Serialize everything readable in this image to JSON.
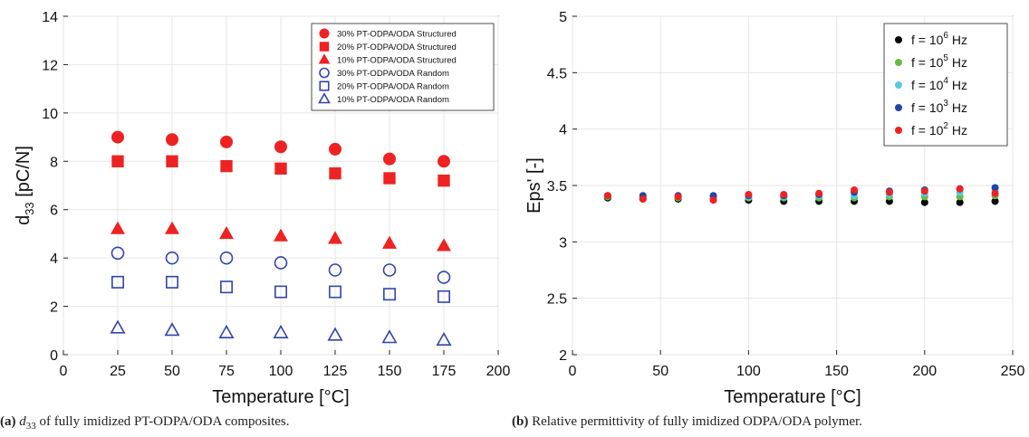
{
  "colors": {
    "red": "#ee2222",
    "blue": "#3344aa",
    "black": "#000000",
    "green": "#66bb44",
    "cyan": "#55ccdd",
    "navy": "#2244aa"
  },
  "chart_data": [
    {
      "type": "scatter",
      "xlabel": "Temperature [°C]",
      "ylabel_main": "d",
      "ylabel_sub": "33",
      "ylabel_rest": " [pC/N]",
      "xlim": [
        0,
        200
      ],
      "ylim": [
        0,
        14
      ],
      "xticks": [
        0,
        25,
        50,
        75,
        100,
        125,
        150,
        175,
        200
      ],
      "yticks": [
        0,
        2,
        4,
        6,
        8,
        10,
        12,
        14
      ],
      "grid": true,
      "legend_position": "top-right",
      "series": [
        {
          "name": "30% PT-ODPA/ODA Structured",
          "marker": "circle",
          "fill": true,
          "color": "red",
          "x": [
            25,
            50,
            75,
            100,
            125,
            150,
            175
          ],
          "y": [
            9.0,
            8.9,
            8.8,
            8.6,
            8.5,
            8.1,
            8.0
          ]
        },
        {
          "name": "20% PT-ODPA/ODA Structured",
          "marker": "square",
          "fill": true,
          "color": "red",
          "x": [
            25,
            50,
            75,
            100,
            125,
            150,
            175
          ],
          "y": [
            8.0,
            8.0,
            7.8,
            7.7,
            7.5,
            7.3,
            7.2
          ]
        },
        {
          "name": "10% PT-ODPA/ODA Structured",
          "marker": "triangle",
          "fill": true,
          "color": "red",
          "x": [
            25,
            50,
            75,
            100,
            125,
            150,
            175
          ],
          "y": [
            5.2,
            5.2,
            5.0,
            4.9,
            4.8,
            4.6,
            4.5
          ]
        },
        {
          "name": "30% PT-ODPA/ODA Random",
          "marker": "circle",
          "fill": false,
          "color": "blue",
          "x": [
            25,
            50,
            75,
            100,
            125,
            150,
            175
          ],
          "y": [
            4.2,
            4.0,
            4.0,
            3.8,
            3.5,
            3.5,
            3.2
          ]
        },
        {
          "name": "20% PT-ODPA/ODA Random",
          "marker": "square",
          "fill": false,
          "color": "blue",
          "x": [
            25,
            50,
            75,
            100,
            125,
            150,
            175
          ],
          "y": [
            3.0,
            3.0,
            2.8,
            2.6,
            2.6,
            2.5,
            2.4
          ]
        },
        {
          "name": "10% PT-ODPA/ODA Random",
          "marker": "triangle",
          "fill": false,
          "color": "blue",
          "x": [
            25,
            50,
            75,
            100,
            125,
            150,
            175
          ],
          "y": [
            1.1,
            1.0,
            0.9,
            0.9,
            0.8,
            0.7,
            0.6
          ]
        }
      ]
    },
    {
      "type": "scatter",
      "xlabel": "Temperature [°C]",
      "ylabel": "Eps' [-]",
      "xlim": [
        0,
        250
      ],
      "ylim": [
        2,
        5
      ],
      "xticks": [
        0,
        50,
        100,
        150,
        200,
        250
      ],
      "yticks": [
        2,
        2.5,
        3,
        3.5,
        4,
        4.5,
        5
      ],
      "grid": true,
      "legend_position": "top-right",
      "series": [
        {
          "name_prefix": "f = 10",
          "name_exp": "6",
          "name_suffix": " Hz",
          "color": "black",
          "x": [
            20,
            40,
            60,
            80,
            100,
            120,
            140,
            160,
            180,
            200,
            220,
            240
          ],
          "y": [
            3.39,
            3.38,
            3.38,
            3.38,
            3.37,
            3.36,
            3.36,
            3.36,
            3.36,
            3.35,
            3.35,
            3.36
          ]
        },
        {
          "name_prefix": "f = 10",
          "name_exp": "5",
          "name_suffix": " Hz",
          "color": "green",
          "x": [
            20,
            40,
            60,
            80,
            100,
            120,
            140,
            160,
            180,
            200,
            220,
            240
          ],
          "y": [
            3.4,
            3.39,
            3.39,
            3.39,
            3.39,
            3.39,
            3.39,
            3.39,
            3.4,
            3.4,
            3.4,
            3.41
          ]
        },
        {
          "name_prefix": "f = 10",
          "name_exp": "4",
          "name_suffix": " Hz",
          "color": "cyan",
          "x": [
            20,
            40,
            60,
            80,
            100,
            120,
            140,
            160,
            180,
            200,
            220,
            240
          ],
          "y": [
            3.41,
            3.4,
            3.4,
            3.4,
            3.4,
            3.4,
            3.41,
            3.41,
            3.42,
            3.43,
            3.44,
            3.45
          ]
        },
        {
          "name_prefix": "f = 10",
          "name_exp": "3",
          "name_suffix": " Hz",
          "color": "navy",
          "x": [
            20,
            40,
            60,
            80,
            100,
            120,
            140,
            160,
            180,
            200,
            220,
            240
          ],
          "y": [
            3.41,
            3.41,
            3.41,
            3.41,
            3.41,
            3.41,
            3.42,
            3.44,
            3.45,
            3.46,
            3.47,
            3.48
          ]
        },
        {
          "name_prefix": "f = 10",
          "name_exp": "2",
          "name_suffix": " Hz",
          "color": "red",
          "x": [
            20,
            40,
            60,
            80,
            100,
            120,
            140,
            160,
            180,
            200,
            220,
            240
          ],
          "y": [
            3.41,
            3.38,
            3.4,
            3.37,
            3.42,
            3.42,
            3.43,
            3.46,
            3.44,
            3.45,
            3.47,
            3.43
          ]
        }
      ]
    }
  ],
  "captions": {
    "a": {
      "tag": "(a)",
      "var": "d",
      "sub": "33",
      "text": " of fully imidized PT-ODPA/ODA composites."
    },
    "b": {
      "tag": "(b)",
      "text": " Relative permittivity of fully imidized ODPA/ODA polymer."
    }
  }
}
